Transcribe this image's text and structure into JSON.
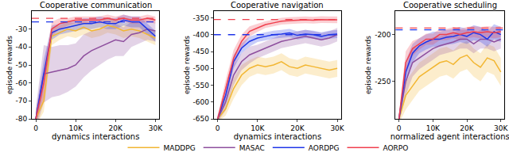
{
  "chart_data": [
    {
      "type": "line",
      "title": "Cooperative communication",
      "xlabel": "dynamics interactions",
      "ylabel": "episode rewards",
      "x": [
        0,
        2000,
        4000,
        6000,
        8000,
        10000,
        12000,
        14000,
        16000,
        18000,
        20000,
        22000,
        24000,
        26000,
        28000,
        30000
      ],
      "xlim": [
        -1000,
        31000
      ],
      "xticks": [
        0,
        {
          "value": 10000,
          "label": "10K"
        },
        {
          "value": 20000,
          "label": "20K"
        },
        {
          "value": 30000,
          "label": "30K"
        }
      ],
      "ylim": [
        -80,
        -20
      ],
      "yticks": [
        -80,
        -70,
        -60,
        -50,
        -40,
        -30
      ],
      "grid": false,
      "legend": "bottom",
      "series": [
        {
          "name": "MADDPG",
          "color": "#f2b632",
          "values": [
            -80,
            -70,
            -34,
            -32,
            -30,
            -31,
            -29,
            -31,
            -30,
            -28,
            -29,
            -31,
            -30,
            -31,
            -33,
            -35
          ],
          "errors": [
            4,
            6,
            5,
            4,
            4,
            4,
            4,
            4,
            4,
            4,
            4,
            4,
            4,
            4,
            4,
            4
          ]
        },
        {
          "name": "MASAC",
          "color": "#8e4f9e",
          "values": [
            -80,
            -55,
            -54,
            -53,
            -52,
            -50,
            -45,
            -42,
            -40,
            -38,
            -36,
            -37,
            -33,
            -32,
            -30,
            -31
          ],
          "errors": [
            6,
            16,
            14,
            14,
            13,
            12,
            12,
            11,
            10,
            9,
            9,
            8,
            7,
            6,
            6,
            6
          ]
        },
        {
          "name": "AORDPG",
          "color": "#1f35e8",
          "values": [
            -80,
            -55,
            -32,
            -30,
            -29,
            -28,
            -27,
            -27,
            -26,
            -27,
            -27,
            -25,
            -26,
            -26,
            -30,
            -34
          ],
          "errors": [
            4,
            8,
            4,
            3,
            3,
            3,
            3,
            3,
            3,
            3,
            3,
            3,
            3,
            3,
            3,
            3
          ]
        },
        {
          "name": "AORPO",
          "color": "#f0404e",
          "values": [
            -80,
            -60,
            -30,
            -27,
            -26,
            -25,
            -25,
            -25,
            -25,
            -24,
            -25,
            -24,
            -25,
            -25,
            -24,
            -25
          ],
          "errors": [
            4,
            8,
            4,
            3,
            2,
            2,
            2,
            2,
            2,
            2,
            2,
            2,
            2,
            2,
            2,
            2
          ]
        }
      ],
      "reference_lines": [
        {
          "value": -24,
          "color": "#f0404e",
          "line_style": "dashed"
        },
        {
          "value": -26,
          "color": "#1f35e8",
          "line_style": "dashed"
        }
      ]
    },
    {
      "type": "line",
      "title": "Cooperative navigation",
      "xlabel": "dynamics interactions",
      "ylabel": "episode rewards",
      "x": [
        0,
        2000,
        4000,
        6000,
        8000,
        10000,
        12000,
        14000,
        16000,
        18000,
        20000,
        22000,
        24000,
        26000,
        28000,
        30000
      ],
      "xlim": [
        -1000,
        31000
      ],
      "xticks": [
        0,
        {
          "value": 10000,
          "label": "10K"
        },
        {
          "value": 20000,
          "label": "20K"
        },
        {
          "value": 30000,
          "label": "30K"
        }
      ],
      "ylim": [
        -650,
        -330
      ],
      "yticks": [
        -650,
        -600,
        -550,
        -500,
        -450,
        -400,
        -350
      ],
      "grid": false,
      "legend": "bottom",
      "series": [
        {
          "name": "MADDPG",
          "color": "#f2b632",
          "values": [
            -650,
            -620,
            -560,
            -520,
            -500,
            -490,
            -495,
            -490,
            -480,
            -495,
            -500,
            -490,
            -495,
            -500,
            -505,
            -500
          ],
          "errors": [
            10,
            20,
            30,
            30,
            25,
            25,
            25,
            25,
            25,
            25,
            25,
            25,
            25,
            25,
            25,
            25
          ]
        },
        {
          "name": "MASAC",
          "color": "#8e4f9e",
          "values": [
            -650,
            -600,
            -520,
            -480,
            -460,
            -450,
            -440,
            -430,
            -420,
            -415,
            -410,
            -405,
            -410,
            -415,
            -410,
            -400
          ],
          "errors": [
            10,
            25,
            30,
            25,
            25,
            20,
            20,
            20,
            20,
            20,
            20,
            20,
            20,
            20,
            20,
            20
          ]
        },
        {
          "name": "AORDPG",
          "color": "#1f35e8",
          "values": [
            -650,
            -580,
            -480,
            -440,
            -420,
            -410,
            -405,
            -400,
            -398,
            -395,
            -402,
            -398,
            -400,
            -405,
            -400,
            -398
          ],
          "errors": [
            10,
            25,
            20,
            15,
            15,
            12,
            12,
            12,
            12,
            12,
            12,
            12,
            12,
            12,
            12,
            12
          ]
        },
        {
          "name": "AORPO",
          "color": "#f0404e",
          "values": [
            -650,
            -560,
            -470,
            -420,
            -390,
            -380,
            -370,
            -365,
            -360,
            -358,
            -357,
            -356,
            -357,
            -355,
            -356,
            -356
          ],
          "errors": [
            10,
            25,
            25,
            20,
            15,
            12,
            10,
            10,
            10,
            10,
            10,
            10,
            10,
            10,
            10,
            10
          ]
        }
      ],
      "reference_lines": [
        {
          "value": -355,
          "color": "#f0404e",
          "line_style": "dashed"
        },
        {
          "value": -400,
          "color": "#1f35e8",
          "line_style": "dashed"
        }
      ]
    },
    {
      "type": "line",
      "title": "Cooperative scheduling",
      "xlabel": "normalized agent interactions",
      "ylabel": "episode rewards",
      "x": [
        0,
        2000,
        4000,
        6000,
        8000,
        10000,
        12000,
        14000,
        16000,
        18000,
        20000,
        22000,
        24000,
        26000,
        28000,
        30000
      ],
      "xlim": [
        -1000,
        31000
      ],
      "xticks": [
        0,
        {
          "value": 10000,
          "label": "10K"
        },
        {
          "value": 20000,
          "label": "20K"
        },
        {
          "value": 30000,
          "label": "30K"
        }
      ],
      "ylim": [
        -290,
        -175
      ],
      "yticks": [
        -250,
        -200
      ],
      "grid": false,
      "legend": "bottom",
      "series": [
        {
          "name": "MADDPG",
          "color": "#f2b632",
          "values": [
            -290,
            -265,
            -255,
            -245,
            -240,
            -235,
            -230,
            -228,
            -232,
            -225,
            -222,
            -230,
            -235,
            -225,
            -228,
            -240
          ],
          "errors": [
            5,
            15,
            15,
            15,
            15,
            15,
            15,
            15,
            15,
            15,
            15,
            15,
            15,
            15,
            15,
            15
          ]
        },
        {
          "name": "MASAC",
          "color": "#8e4f9e",
          "values": [
            -290,
            -250,
            -230,
            -225,
            -220,
            -215,
            -212,
            -210,
            -208,
            -205,
            -205,
            -210,
            -205,
            -205,
            -208,
            -205
          ],
          "errors": [
            5,
            15,
            15,
            12,
            12,
            12,
            10,
            10,
            10,
            10,
            10,
            10,
            10,
            10,
            10,
            10
          ]
        },
        {
          "name": "AORDPG",
          "color": "#1f35e8",
          "values": [
            -290,
            -240,
            -220,
            -212,
            -208,
            -205,
            -205,
            -203,
            -202,
            -200,
            -202,
            -198,
            -200,
            -205,
            -197,
            -200
          ],
          "errors": [
            5,
            12,
            10,
            8,
            8,
            8,
            8,
            8,
            8,
            8,
            8,
            8,
            8,
            8,
            8,
            8
          ]
        },
        {
          "name": "AORPO",
          "color": "#f0404e",
          "values": [
            -290,
            -230,
            -215,
            -210,
            -205,
            -205,
            -200,
            -200,
            -198,
            -200,
            -198,
            -197,
            -198,
            -197,
            -198,
            -197
          ],
          "errors": [
            5,
            12,
            8,
            6,
            6,
            6,
            6,
            6,
            6,
            6,
            6,
            6,
            6,
            6,
            6,
            6
          ]
        }
      ],
      "reference_lines": [
        {
          "value": -193,
          "color": "#f0404e",
          "line_style": "dashed"
        },
        {
          "value": -195,
          "color": "#1f35e8",
          "line_style": "dashed"
        }
      ]
    }
  ]
}
